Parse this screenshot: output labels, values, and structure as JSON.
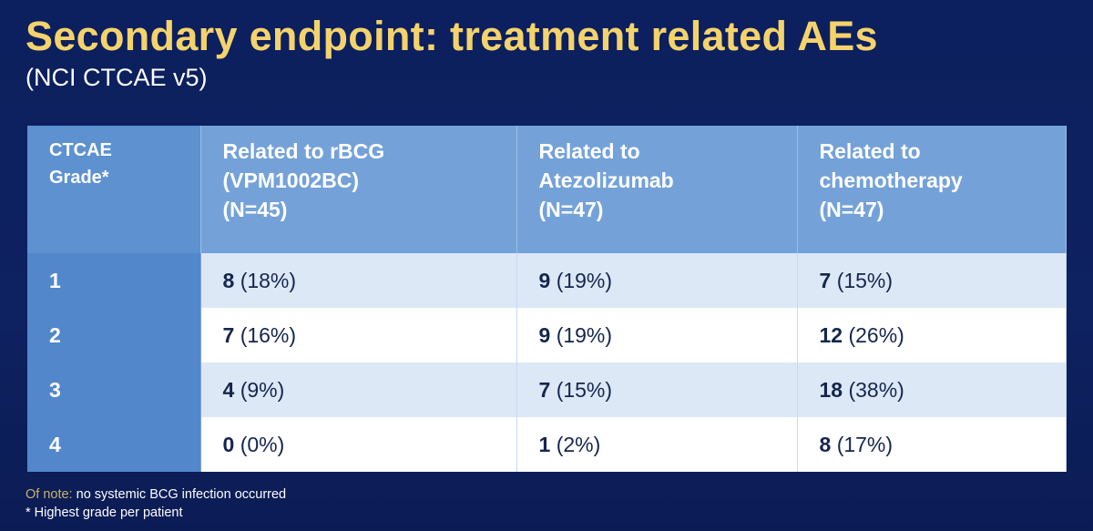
{
  "header": {
    "title": "Secondary endpoint: treatment related AEs",
    "subtitle": "(NCI CTCAE v5)"
  },
  "table": {
    "columns": [
      [
        "CTCAE",
        "Grade*"
      ],
      [
        "Related to rBCG",
        "(VPM1002BC)",
        "(N=45)"
      ],
      [
        "Related to",
        "Atezolizumab",
        "(N=47)"
      ],
      [
        "Related to",
        "chemotherapy",
        "(N=47)"
      ]
    ],
    "rows": [
      {
        "grade": "1",
        "cells": [
          {
            "count": "8",
            "percent": "(18%)"
          },
          {
            "count": "9",
            "percent": "(19%)"
          },
          {
            "count": "7",
            "percent": "(15%)"
          }
        ]
      },
      {
        "grade": "2",
        "cells": [
          {
            "count": "7",
            "percent": "(16%)"
          },
          {
            "count": "9",
            "percent": "(19%)"
          },
          {
            "count": "12",
            "percent": "(26%)"
          }
        ]
      },
      {
        "grade": "3",
        "cells": [
          {
            "count": "4",
            "percent": "(9%)"
          },
          {
            "count": "7",
            "percent": "(15%)"
          },
          {
            "count": "18",
            "percent": "(38%)"
          }
        ]
      },
      {
        "grade": "4",
        "cells": [
          {
            "count": "0",
            "percent": "(0%)"
          },
          {
            "count": "1",
            "percent": "(2%)"
          },
          {
            "count": "8",
            "percent": "(17%)"
          }
        ]
      }
    ]
  },
  "notes": {
    "label": "Of note:",
    "text": "no systemic BCG infection occurred",
    "footnote": "* Highest grade per patient"
  }
}
